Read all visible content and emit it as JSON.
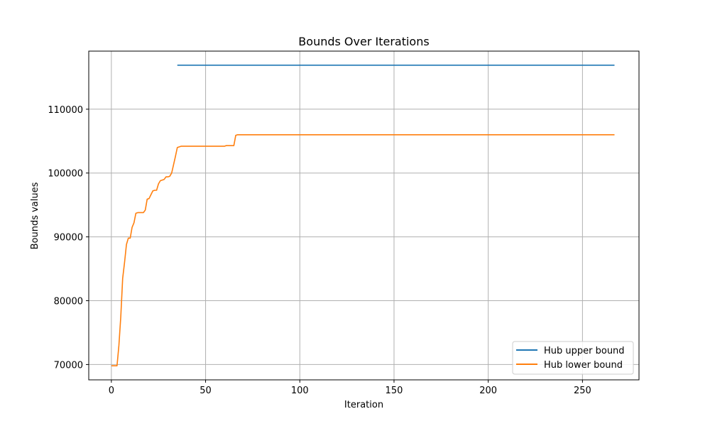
{
  "chart_data": {
    "type": "line",
    "title": "Bounds Over Iterations",
    "xlabel": "Iteration",
    "ylabel": "Bounds values",
    "xlim": [
      -12,
      280
    ],
    "ylim": [
      67600,
      119100
    ],
    "xticks": [
      0,
      50,
      100,
      150,
      200,
      250
    ],
    "yticks": [
      70000,
      80000,
      90000,
      100000,
      110000
    ],
    "grid": true,
    "legend_position": "lower-right",
    "series": [
      {
        "name": "Hub upper bound",
        "color": "#1f77b4",
        "points": [
          [
            35,
            116900
          ],
          [
            267,
            116900
          ]
        ]
      },
      {
        "name": "Hub lower bound",
        "color": "#ff7f0e",
        "points": [
          [
            0,
            69800
          ],
          [
            3,
            69800
          ],
          [
            4,
            73000
          ],
          [
            5,
            77500
          ],
          [
            6,
            83500
          ],
          [
            7,
            86000
          ],
          [
            8,
            88800
          ],
          [
            9,
            89800
          ],
          [
            10,
            89800
          ],
          [
            11,
            91500
          ],
          [
            12,
            92200
          ],
          [
            13,
            93700
          ],
          [
            14,
            93800
          ],
          [
            17,
            93800
          ],
          [
            18,
            94200
          ],
          [
            19,
            95900
          ],
          [
            20,
            96000
          ],
          [
            21,
            96600
          ],
          [
            22,
            97200
          ],
          [
            23,
            97300
          ],
          [
            24,
            97300
          ],
          [
            25,
            98300
          ],
          [
            26,
            98800
          ],
          [
            27,
            98900
          ],
          [
            28,
            99000
          ],
          [
            29,
            99400
          ],
          [
            30,
            99400
          ],
          [
            31,
            99500
          ],
          [
            32,
            100000
          ],
          [
            33,
            101300
          ],
          [
            34,
            102600
          ],
          [
            35,
            104000
          ],
          [
            36,
            104100
          ],
          [
            37,
            104200
          ],
          [
            60,
            104200
          ],
          [
            61,
            104300
          ],
          [
            65,
            104300
          ],
          [
            66,
            105900
          ],
          [
            67,
            106000
          ],
          [
            267,
            106000
          ]
        ]
      }
    ]
  }
}
